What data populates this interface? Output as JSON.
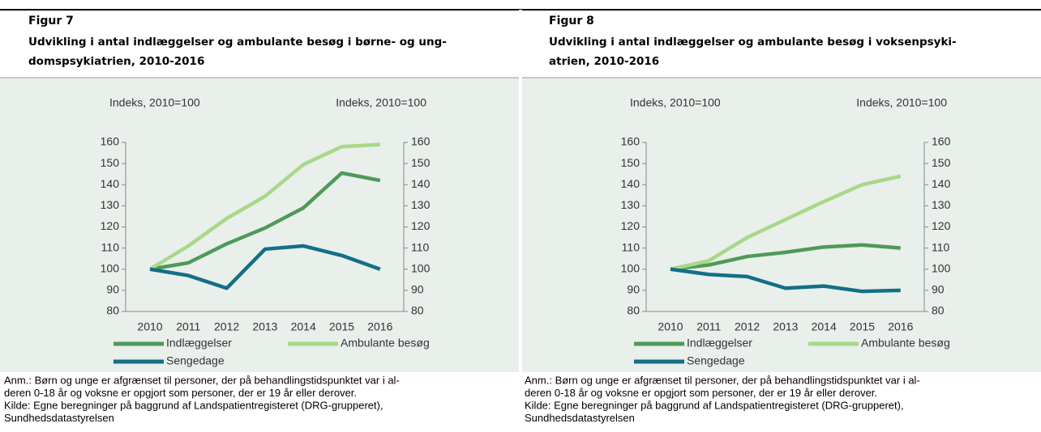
{
  "chart_data": [
    {
      "type": "line",
      "label": "Figur 7",
      "title": [
        "Udvikling i antal indlæggelser og ambulante besøg i børne- og ung-",
        "domspsykiatrien, 2010-2016"
      ],
      "ylabel": "Indeks, 2010=100",
      "y2label": "Indeks, 2010=100",
      "categories": [
        "2010",
        "2011",
        "2012",
        "2013",
        "2014",
        "2015",
        "2016"
      ],
      "series": [
        {
          "name": "Indlæggelser",
          "color": "#4e9a58",
          "values": [
            100,
            103,
            112,
            119.5,
            129,
            145.5,
            142
          ]
        },
        {
          "name": "Ambulante besøg",
          "color": "#a8d888",
          "values": [
            100,
            111,
            124,
            134.5,
            149.5,
            158,
            159
          ]
        },
        {
          "name": "Sengedage",
          "color": "#136f86",
          "values": [
            100,
            97,
            91,
            109.5,
            111,
            106.5,
            100
          ]
        }
      ],
      "ylim": [
        80,
        160
      ],
      "yticks": [
        80,
        90,
        100,
        110,
        120,
        130,
        140,
        150,
        160
      ],
      "y2lim": [
        80,
        160
      ],
      "y2ticks": [
        80,
        90,
        100,
        110,
        120,
        130,
        140,
        150,
        160
      ],
      "notes": [
        "Anm.: Børn og unge er afgrænset til personer, der på behandlingstidspunktet var i al-",
        "deren 0-18 år og voksne er opgjort som personer, der er 19 år eller derover.",
        "Kilde: Egne beregninger på baggrund af Landspatientregisteret (DRG-grupperet),",
        "Sundhedsdatastyrelsen"
      ]
    },
    {
      "type": "line",
      "label": "Figur 8",
      "title": [
        "Udvikling i antal indlæggelser og ambulante besøg i voksenpsyki-",
        "atrien, 2010-2016"
      ],
      "ylabel": "Indeks, 2010=100",
      "y2label": "Indeks, 2010=100",
      "categories": [
        "2010",
        "2011",
        "2012",
        "2013",
        "2014",
        "2015",
        "2016"
      ],
      "series": [
        {
          "name": "Indlæggelser",
          "color": "#4e9a58",
          "values": [
            100,
            102,
            106,
            108,
            110.5,
            111.5,
            110
          ]
        },
        {
          "name": "Ambulante besøg",
          "color": "#a8d888",
          "values": [
            100,
            104,
            115,
            123.5,
            132,
            140,
            144
          ]
        },
        {
          "name": "Sengedage",
          "color": "#136f86",
          "values": [
            100,
            97.5,
            96.5,
            91,
            92,
            89.5,
            90
          ]
        }
      ],
      "ylim": [
        80,
        160
      ],
      "yticks": [
        80,
        90,
        100,
        110,
        120,
        130,
        140,
        150,
        160
      ],
      "y2lim": [
        80,
        160
      ],
      "y2ticks": [
        80,
        90,
        100,
        110,
        120,
        130,
        140,
        150,
        160
      ],
      "notes": [
        "Anm.: Børn og unge er afgrænset til personer, der på behandlingstidspunktet var i al-",
        "deren 0-18 år og voksne er opgjort som personer, der er 19 år eller derover.",
        "Kilde: Egne beregninger på baggrund af Landspatientregisteret (DRG-grupperet),",
        "Sundhedsdatastyrelsen"
      ]
    }
  ]
}
